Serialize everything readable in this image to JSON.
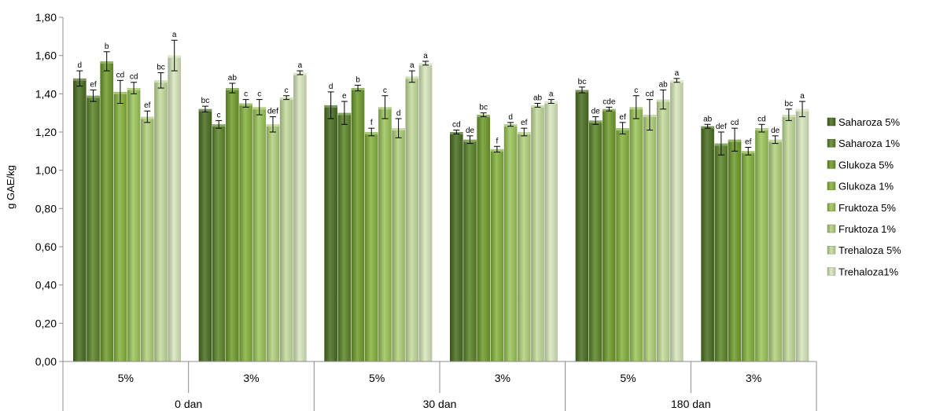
{
  "chart_data": {
    "type": "bar",
    "ylabel": "g GAE/kg",
    "ylim": [
      0,
      1.8
    ],
    "yticks": [
      0,
      0.2,
      0.4,
      0.6,
      0.8,
      1.0,
      1.2,
      1.4,
      1.6,
      1.8
    ],
    "ytick_labels": [
      "0,00",
      "0,20",
      "0,40",
      "0,60",
      "0,80",
      "1,00",
      "1,20",
      "1,40",
      "1,60",
      "1,80"
    ],
    "grid": false,
    "legend_position": "right",
    "groups": [
      {
        "label": "0 dan",
        "subgroups": [
          "5%",
          "3%"
        ]
      },
      {
        "label": "30 dan",
        "subgroups": [
          "5%",
          "3%"
        ]
      },
      {
        "label": "180 dan",
        "subgroups": [
          "5%",
          "3%"
        ]
      }
    ],
    "categories": [
      "0 dan 5%",
      "0 dan 3%",
      "30 dan 5%",
      "30 dan 3%",
      "180 dan 5%",
      "180 dan 3%"
    ],
    "series": [
      {
        "name": "Saharoza 5%",
        "color": "#4a6e20",
        "values": [
          1.48,
          1.32,
          1.34,
          1.2,
          1.42,
          1.23
        ],
        "errors": [
          0.04,
          0.015,
          0.07,
          0.01,
          0.015,
          0.01
        ],
        "letters": [
          "d",
          "bc",
          "d",
          "cd",
          "bc",
          "ab"
        ]
      },
      {
        "name": "Saharoza 1%",
        "color": "#5c8528",
        "values": [
          1.39,
          1.24,
          1.3,
          1.16,
          1.26,
          1.14
        ],
        "errors": [
          0.03,
          0.02,
          0.06,
          0.02,
          0.02,
          0.06
        ],
        "letters": [
          "ef",
          "c",
          "e",
          "de",
          "de",
          "def"
        ]
      },
      {
        "name": "Glukoza 5%",
        "color": "#6f9b2c",
        "values": [
          1.57,
          1.43,
          1.43,
          1.29,
          1.32,
          1.16
        ],
        "errors": [
          0.05,
          0.025,
          0.015,
          0.01,
          0.01,
          0.06
        ],
        "letters": [
          "b",
          "ab",
          "b",
          "bc",
          "cde",
          "cd"
        ]
      },
      {
        "name": "Glukoza 1%",
        "color": "#86b33c",
        "values": [
          1.41,
          1.35,
          1.2,
          1.11,
          1.22,
          1.1
        ],
        "errors": [
          0.06,
          0.02,
          0.02,
          0.015,
          0.03,
          0.02
        ],
        "letters": [
          "cd",
          "c",
          "f",
          "f",
          "ef",
          "ef"
        ]
      },
      {
        "name": "Fruktoza 5%",
        "color": "#9cc55a",
        "values": [
          1.43,
          1.33,
          1.33,
          1.24,
          1.33,
          1.22
        ],
        "errors": [
          0.03,
          0.04,
          0.06,
          0.01,
          0.06,
          0.02
        ],
        "letters": [
          "cd",
          "c",
          "c",
          "d",
          "c",
          "cd"
        ]
      },
      {
        "name": "Fruktoza 1%",
        "color": "#b2d17e",
        "values": [
          1.28,
          1.24,
          1.22,
          1.2,
          1.29,
          1.16
        ],
        "errors": [
          0.03,
          0.04,
          0.05,
          0.02,
          0.08,
          0.02
        ],
        "letters": [
          "ef",
          "def",
          "d",
          "ef",
          "cd",
          "de"
        ]
      },
      {
        "name": "Trehaloza 5%",
        "color": "#c4dc9c",
        "values": [
          1.47,
          1.38,
          1.49,
          1.34,
          1.37,
          1.29
        ],
        "errors": [
          0.04,
          0.01,
          0.03,
          0.01,
          0.05,
          0.03
        ],
        "letters": [
          "bc",
          "c",
          "a",
          "ab",
          "ab",
          "bc"
        ]
      },
      {
        "name": "Trehaloza1%",
        "color": "#d8e8bc",
        "values": [
          1.6,
          1.51,
          1.56,
          1.36,
          1.47,
          1.32
        ],
        "errors": [
          0.08,
          0.01,
          0.01,
          0.01,
          0.01,
          0.04
        ],
        "letters": [
          "a",
          "a",
          "a",
          "a",
          "a",
          "a"
        ]
      }
    ]
  }
}
